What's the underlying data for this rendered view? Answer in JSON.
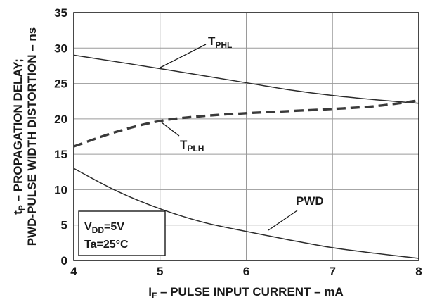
{
  "chart_data": {
    "type": "line",
    "xlabel": {
      "main": "I",
      "sub": "F",
      "rest": " – PULSE INPUT CURRENT – mA"
    },
    "ylabel": {
      "line1_main": "t",
      "line1_sub": "P",
      "line1_rest": " – PROPAGATION DELAY;",
      "line2": "PWD-PULSE WIDTH DISTORTION – ns"
    },
    "xlim": [
      4,
      8
    ],
    "ylim": [
      0,
      35
    ],
    "x_ticks": [
      "4",
      "5",
      "6",
      "7",
      "8"
    ],
    "y_ticks": [
      "0",
      "5",
      "10",
      "15",
      "20",
      "25",
      "30",
      "35"
    ],
    "grid": true,
    "series": [
      {
        "name": "T_PHL",
        "label_main": "T",
        "label_sub": "PHL",
        "style": "solid",
        "x": [
          4,
          5,
          6,
          6.5,
          7,
          7.5,
          8
        ],
        "y": [
          29.0,
          27.1,
          25.1,
          24.1,
          23.3,
          22.7,
          22.2
        ]
      },
      {
        "name": "T_PLH",
        "label_main": "T",
        "label_sub": "PLH",
        "style": "dashed",
        "x": [
          4,
          4.5,
          5,
          5.5,
          6,
          6.5,
          7,
          7.5,
          8
        ],
        "y": [
          16.1,
          18.2,
          19.7,
          20.4,
          20.8,
          21.1,
          21.4,
          21.8,
          22.6
        ]
      },
      {
        "name": "PWD",
        "label_main": "PWD",
        "label_sub": "",
        "style": "solid",
        "x": [
          4,
          4.5,
          5,
          5.5,
          6,
          6.5,
          7,
          7.5,
          8
        ],
        "y": [
          13.0,
          9.8,
          7.3,
          5.4,
          4.1,
          2.9,
          1.8,
          1.0,
          0.3
        ]
      }
    ],
    "conditions": {
      "vdd_main": "V",
      "vdd_sub": "DD",
      "vdd_rest": "=5V",
      "ta": "Ta=25°C"
    }
  }
}
